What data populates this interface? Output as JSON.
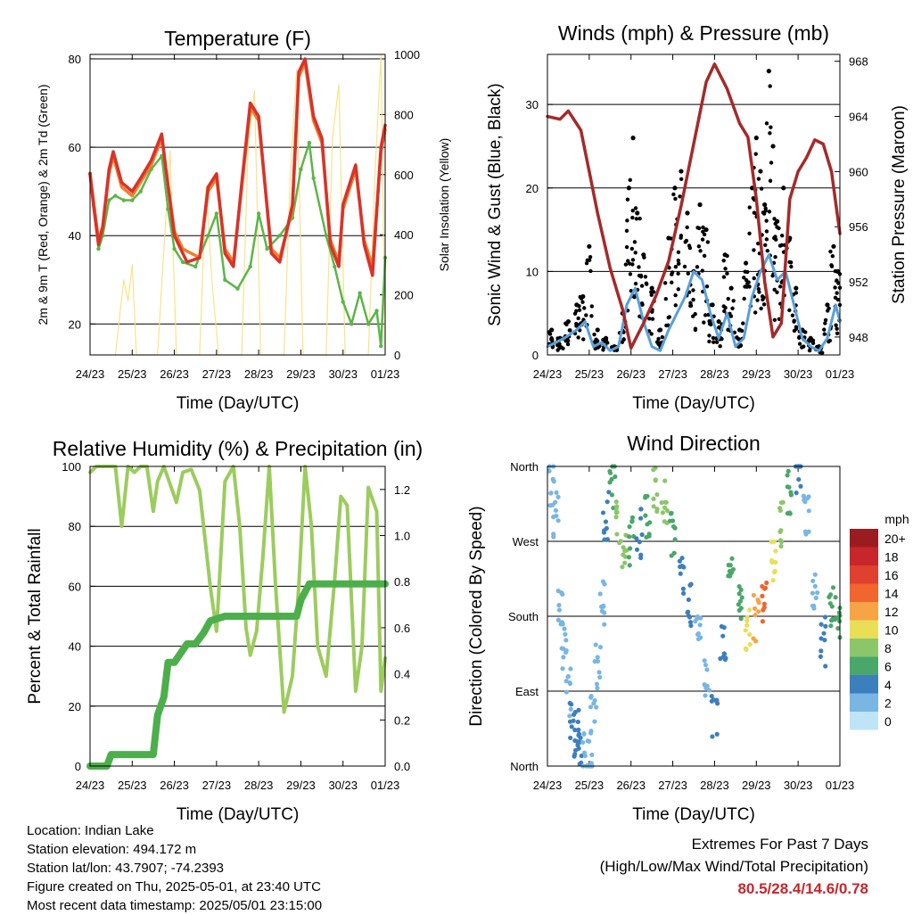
{
  "x_tick_labels": [
    "24/23",
    "25/23",
    "26/23",
    "27/23",
    "28/23",
    "29/23",
    "30/23",
    "01/23"
  ],
  "panels": {
    "temperature": {
      "title": "Temperature (F)",
      "xlabel": "Time (Day/UTC)",
      "ylabel_left": "2m & 9m T (Red, Orange) & 2m Td (Green)",
      "ylabel_right": "Solar Insolation (Yellow)",
      "left_ticks": [
        "20",
        "40",
        "60",
        "80"
      ],
      "right_ticks": [
        "0",
        "200",
        "400",
        "600",
        "800",
        "1000"
      ]
    },
    "winds": {
      "title": "Winds (mph) & Pressure (mb)",
      "xlabel": "Time (Day/UTC)",
      "ylabel_left": "Sonic Wind & Gust (Blue, Black)",
      "ylabel_right": "Station Pressure (Maroon)",
      "left_ticks": [
        "0",
        "10",
        "20",
        "30"
      ],
      "right_ticks": [
        "948",
        "952",
        "956",
        "960",
        "964",
        "968"
      ]
    },
    "humidity": {
      "title": "Relative Humidity (%) & Precipitation (in)",
      "xlabel": "Time (Day/UTC)",
      "ylabel_left": "Percent & Total Rainfall",
      "left_ticks": [
        "0",
        "20",
        "40",
        "60",
        "80",
        "100"
      ],
      "right_ticks": [
        "0.0",
        "0.2",
        "0.4",
        "0.6",
        "0.8",
        "1.0",
        "1.2"
      ]
    },
    "direction": {
      "title": "Wind Direction",
      "xlabel": "Time (Day/UTC)",
      "ylabel_left": "Direction (Colored By Speed)",
      "left_ticks": [
        "North",
        "East",
        "South",
        "West",
        "North"
      ],
      "legend_title": "mph",
      "legend_labels": [
        "20+",
        "18",
        "16",
        "14",
        "12",
        "10",
        "8",
        "6",
        "4",
        "2",
        "0"
      ],
      "legend_colors": [
        "#9b1c1f",
        "#c8262b",
        "#e0402e",
        "#f1652f",
        "#f7a446",
        "#e8df57",
        "#8cc66a",
        "#4aa76a",
        "#3d7fbd",
        "#79b6e3",
        "#bfe4f7"
      ]
    }
  },
  "chart_data": [
    {
      "type": "line",
      "title": "Temperature (F)",
      "xlabel": "Time (Day/UTC)",
      "ylabel": "2m & 9m T (Red, Orange) & 2m Td (Green)",
      "y2label": "Solar Insolation (Yellow)",
      "x": [
        "24/23",
        "25/23",
        "26/23",
        "27/23",
        "28/23",
        "29/23",
        "30/23",
        "01/23"
      ],
      "ylim": [
        13,
        81
      ],
      "y2lim": [
        0,
        1000
      ],
      "series": [
        {
          "name": "2m T",
          "color": "#d8332a",
          "axis": "left",
          "x": [
            0,
            0.08,
            0.2,
            0.3,
            0.45,
            0.55,
            0.75,
            1.0,
            1.2,
            1.45,
            1.7,
            1.8,
            2.0,
            2.2,
            2.3,
            2.6,
            2.8,
            3.0,
            3.2,
            3.4,
            3.6,
            3.8,
            4.0,
            4.3,
            4.5,
            4.8,
            4.95,
            5.1,
            5.3,
            5.5,
            5.7,
            5.9,
            6.0,
            6.3,
            6.5,
            6.7,
            6.9,
            7.0
          ],
          "y": [
            54,
            47,
            38,
            42,
            55,
            59,
            52,
            50,
            53,
            57,
            63,
            55,
            40,
            36,
            34,
            35,
            51,
            54,
            36,
            33,
            52,
            70,
            67,
            36,
            34,
            47,
            77,
            80,
            67,
            62,
            38,
            33,
            47,
            56,
            38,
            31,
            60,
            65
          ]
        },
        {
          "name": "9m T",
          "color": "#f07e2c",
          "axis": "left",
          "x": [
            0,
            0.2,
            0.3,
            0.45,
            0.55,
            0.75,
            1.0,
            1.45,
            1.7,
            1.8,
            2.0,
            2.2,
            2.6,
            2.8,
            3.0,
            3.2,
            3.4,
            3.6,
            3.8,
            4.0,
            4.3,
            4.5,
            4.8,
            4.95,
            5.1,
            5.3,
            5.5,
            5.7,
            5.9,
            6.0,
            6.3,
            6.5,
            6.7,
            6.9,
            7.0
          ],
          "y": [
            54,
            39,
            42,
            54,
            58,
            51,
            49,
            56,
            62,
            55,
            41,
            37,
            35,
            50,
            53,
            37,
            34,
            51,
            69,
            66,
            37,
            35,
            46,
            76,
            79,
            66,
            61,
            39,
            34,
            46,
            55,
            39,
            33,
            59,
            64
          ]
        },
        {
          "name": "2m Td",
          "color": "#5cb548",
          "axis": "left",
          "x": [
            0,
            0.2,
            0.3,
            0.45,
            0.6,
            0.8,
            1.0,
            1.2,
            1.45,
            1.7,
            1.85,
            2.0,
            2.2,
            2.5,
            2.8,
            3.0,
            3.2,
            3.5,
            3.8,
            4.0,
            4.2,
            4.5,
            4.8,
            5.0,
            5.2,
            5.3,
            5.6,
            5.8,
            6.0,
            6.2,
            6.4,
            6.6,
            6.8,
            6.9,
            7.0
          ],
          "y": [
            54,
            37,
            40,
            48,
            49,
            48,
            48,
            50,
            55,
            58,
            46,
            37,
            34,
            33,
            40,
            45,
            30,
            28,
            33,
            45,
            37,
            40,
            44,
            55,
            61,
            53,
            40,
            33,
            25,
            20,
            27,
            20,
            23,
            15,
            35
          ]
        },
        {
          "name": "Solar Insolation",
          "color": "#f8e38a",
          "axis": "right",
          "x": [
            0.6,
            0.8,
            0.9,
            1.0,
            1.1,
            1.6,
            1.75,
            1.9,
            2.05,
            2.6,
            2.75,
            2.9,
            3.05,
            3.6,
            3.75,
            3.9,
            4.05,
            4.6,
            4.75,
            4.9,
            5.05,
            5.6,
            5.75,
            5.9,
            6.05,
            6.6,
            6.75,
            6.9,
            7.0
          ],
          "y": [
            0,
            250,
            180,
            300,
            0,
            0,
            350,
            680,
            0,
            0,
            560,
            230,
            0,
            0,
            700,
            880,
            0,
            0,
            600,
            950,
            0,
            0,
            720,
            900,
            0,
            0,
            580,
            1000,
            0
          ]
        }
      ]
    },
    {
      "type": "scatter",
      "title": "Winds (mph) & Pressure (mb)",
      "xlabel": "Time (Day/UTC)",
      "ylabel": "Sonic Wind & Gust (Blue, Black)",
      "y2label": "Station Pressure (Maroon)",
      "x": [
        "24/23",
        "25/23",
        "26/23",
        "27/23",
        "28/23",
        "29/23",
        "30/23",
        "01/23"
      ],
      "ylim": [
        0,
        36
      ],
      "y2lim": [
        946.7,
        968.5
      ],
      "series": [
        {
          "name": "Station Pressure",
          "color": "#a52a2a",
          "type": "line",
          "axis": "right",
          "x": [
            0,
            0.3,
            0.5,
            0.8,
            1.0,
            1.2,
            1.5,
            1.8,
            2.0,
            2.3,
            2.6,
            2.9,
            3.2,
            3.5,
            3.8,
            4.0,
            4.3,
            4.6,
            4.8,
            5.0,
            5.2,
            5.4,
            5.6,
            5.8,
            6.0,
            6.2,
            6.4,
            6.6,
            6.8,
            7.0
          ],
          "y": [
            964,
            963.8,
            964.4,
            963,
            960,
            957,
            953,
            950,
            947.2,
            949,
            951,
            953.5,
            957.5,
            962,
            966.5,
            967.8,
            966,
            963.5,
            962.5,
            958,
            952,
            948,
            949,
            958,
            960,
            961,
            962.3,
            962,
            960,
            955.5
          ]
        },
        {
          "name": "Sonic Wind",
          "color": "#5aa0d8",
          "type": "line",
          "axis": "left",
          "x": [
            0,
            0.2,
            0.4,
            0.7,
            0.9,
            1.1,
            1.3,
            1.5,
            1.7,
            1.9,
            2.1,
            2.3,
            2.5,
            2.7,
            2.9,
            3.1,
            3.3,
            3.5,
            3.7,
            3.9,
            4.1,
            4.3,
            4.5,
            4.7,
            4.9,
            5.1,
            5.3,
            5.5,
            5.7,
            5.9,
            6.1,
            6.3,
            6.5,
            6.7,
            6.9,
            7.0
          ],
          "y": [
            1,
            1.5,
            2,
            3,
            4,
            1,
            1.5,
            0.5,
            1,
            6,
            8,
            4,
            1,
            0.5,
            3,
            5,
            7,
            10,
            9,
            5,
            2,
            5,
            1,
            2,
            7,
            10,
            12,
            9,
            10,
            6,
            2,
            1,
            0.5,
            2,
            6,
            4
          ]
        },
        {
          "name": "Gust",
          "color": "#000000",
          "type": "scatter",
          "axis": "left",
          "x": [
            0.1,
            0.3,
            0.5,
            0.7,
            0.85,
            1.0,
            1.2,
            1.4,
            1.6,
            1.8,
            1.95,
            2.05,
            2.15,
            2.3,
            2.5,
            2.7,
            2.9,
            3.05,
            3.2,
            3.35,
            3.5,
            3.65,
            3.8,
            3.95,
            4.1,
            4.25,
            4.4,
            4.6,
            4.75,
            4.9,
            5.0,
            5.1,
            5.2,
            5.3,
            5.4,
            5.5,
            5.65,
            5.8,
            5.95,
            6.1,
            6.3,
            6.5,
            6.7,
            6.85,
            6.95
          ],
          "y": [
            3,
            2,
            4,
            6,
            7,
            13,
            3,
            2,
            1,
            5,
            20,
            26,
            17,
            12,
            8,
            3,
            14,
            20,
            22,
            17,
            10,
            18,
            15,
            6,
            4,
            12,
            8,
            3,
            11,
            20,
            26,
            22,
            18,
            34,
            25,
            16,
            20,
            14,
            8,
            3,
            2,
            1,
            6,
            13,
            10
          ]
        }
      ]
    },
    {
      "type": "line",
      "title": "Relative Humidity (%) & Precipitation (in)",
      "xlabel": "Time (Day/UTC)",
      "ylabel": "Percent & Total Rainfall",
      "x": [
        "24/23",
        "25/23",
        "26/23",
        "27/23",
        "28/23",
        "29/23",
        "30/23",
        "01/23"
      ],
      "ylim": [
        0,
        100
      ],
      "y2lim": [
        0,
        1.3
      ],
      "series": [
        {
          "name": "Relative Humidity",
          "color": "#9ccc5e",
          "axis": "left",
          "x": [
            0,
            0.15,
            0.4,
            0.5,
            0.6,
            0.75,
            0.9,
            1.05,
            1.2,
            1.35,
            1.5,
            1.6,
            1.75,
            1.85,
            2.05,
            2.2,
            2.4,
            2.6,
            2.75,
            2.85,
            3.0,
            3.2,
            3.4,
            3.55,
            3.7,
            3.8,
            3.95,
            4.1,
            4.25,
            4.4,
            4.6,
            4.8,
            4.95,
            5.1,
            5.25,
            5.4,
            5.6,
            5.8,
            5.95,
            6.1,
            6.3,
            6.45,
            6.6,
            6.8,
            6.9,
            7.0
          ],
          "y": [
            98,
            100,
            100,
            100,
            100,
            80,
            100,
            98,
            100,
            100,
            85,
            95,
            100,
            96,
            88,
            98,
            99,
            92,
            73,
            60,
            45,
            95,
            100,
            80,
            46,
            37,
            45,
            70,
            100,
            60,
            18,
            30,
            60,
            100,
            80,
            40,
            30,
            62,
            90,
            87,
            25,
            40,
            93,
            85,
            25,
            36
          ]
        },
        {
          "name": "Total Precipitation",
          "color": "#4caf4b",
          "axis": "right",
          "x": [
            0,
            0.4,
            0.5,
            0.8,
            1.0,
            1.5,
            1.6,
            1.75,
            1.85,
            2.0,
            2.3,
            2.5,
            2.7,
            2.85,
            3.2,
            3.8,
            4.0,
            4.3,
            4.5,
            4.9,
            5.0,
            5.2,
            6.0,
            7.0
          ],
          "y": [
            0.0,
            0.0,
            0.05,
            0.05,
            0.05,
            0.05,
            0.22,
            0.3,
            0.45,
            0.45,
            0.53,
            0.53,
            0.58,
            0.63,
            0.65,
            0.65,
            0.65,
            0.65,
            0.65,
            0.65,
            0.72,
            0.79,
            0.79,
            0.79
          ]
        }
      ]
    },
    {
      "type": "scatter",
      "title": "Wind Direction",
      "xlabel": "Time (Day/UTC)",
      "ylabel": "Direction (Colored By Speed)",
      "x": [
        "24/23",
        "25/23",
        "26/23",
        "27/23",
        "28/23",
        "29/23",
        "30/23",
        "01/23"
      ],
      "y_categories": [
        "North",
        "East",
        "South",
        "West",
        "North"
      ],
      "ylim": [
        0,
        360
      ],
      "series": [
        {
          "name": "Direction",
          "type": "scatter",
          "x": [
            0.1,
            0.2,
            0.3,
            0.4,
            0.5,
            0.6,
            0.7,
            0.8,
            0.9,
            1.0,
            1.1,
            1.2,
            1.3,
            1.4,
            1.55,
            1.7,
            1.85,
            2.0,
            2.2,
            2.4,
            2.6,
            2.8,
            3.0,
            3.2,
            3.4,
            3.6,
            3.8,
            4.0,
            4.2,
            4.4,
            4.6,
            4.8,
            5.0,
            5.2,
            5.4,
            5.6,
            5.8,
            6.0,
            6.2,
            6.4,
            6.6,
            6.8,
            6.95
          ],
          "y": [
            340,
            300,
            200,
            140,
            90,
            60,
            40,
            30,
            20,
            10,
            60,
            120,
            200,
            300,
            340,
            290,
            250,
            270,
            280,
            300,
            330,
            320,
            280,
            230,
            190,
            150,
            100,
            60,
            150,
            240,
            190,
            160,
            180,
            200,
            240,
            290,
            330,
            350,
            300,
            200,
            150,
            190,
            180
          ],
          "speed": [
            1,
            1,
            2,
            1,
            2,
            3,
            4,
            3,
            2,
            1,
            1,
            2,
            1,
            3,
            5,
            7,
            8,
            6,
            4,
            5,
            7,
            8,
            6,
            4,
            3,
            2,
            2,
            3,
            4,
            5,
            6,
            9,
            11,
            13,
            10,
            8,
            5,
            3,
            2,
            1,
            3,
            6,
            5
          ]
        }
      ]
    }
  ],
  "footer": {
    "location": "Location: Indian Lake",
    "elevation": "Station elevation: 494.172 m",
    "latlon": "Station lat/lon: 43.7907; -74.2393",
    "created": "Figure created on Thu, 2025-05-01, at 23:40 UTC",
    "recent": "Most recent data timestamp: 2025/05/01 23:15:00"
  },
  "extremes": {
    "title": "Extremes For Past 7 Days",
    "subtitle": "(High/Low/Max Wind/Total Precipitation)",
    "values": "80.5/28.4/14.6/0.78"
  }
}
